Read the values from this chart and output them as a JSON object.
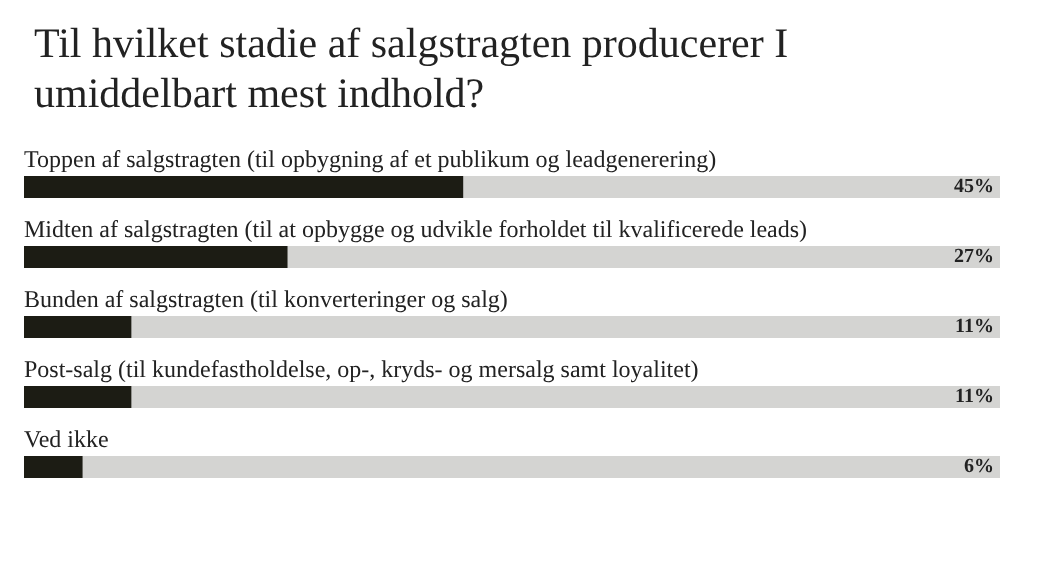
{
  "chart_data": {
    "type": "bar",
    "orientation": "horizontal",
    "title": "Til hvilket stadie af salgstragten producerer I umiddelbart mest indhold?",
    "categories": [
      "Toppen af salgstragten (til opbygning af et publikum og leadgenerering)",
      "Midten af salgstragten (til at opbygge og udvikle forholdet til kvalificerede leads)",
      "Bunden af salgstragten (til konverteringer og salg)",
      "Post-salg (til kundefastholdelse, op-, kryds- og mersalg samt loyalitet)",
      "Ved ikke"
    ],
    "values": [
      45,
      27,
      11,
      11,
      6
    ],
    "value_labels": [
      "45%",
      "27%",
      "11%",
      "11%",
      "6%"
    ],
    "color": "#1c1c14",
    "xlim": [
      0,
      100
    ],
    "tick_labels": "y"
  }
}
